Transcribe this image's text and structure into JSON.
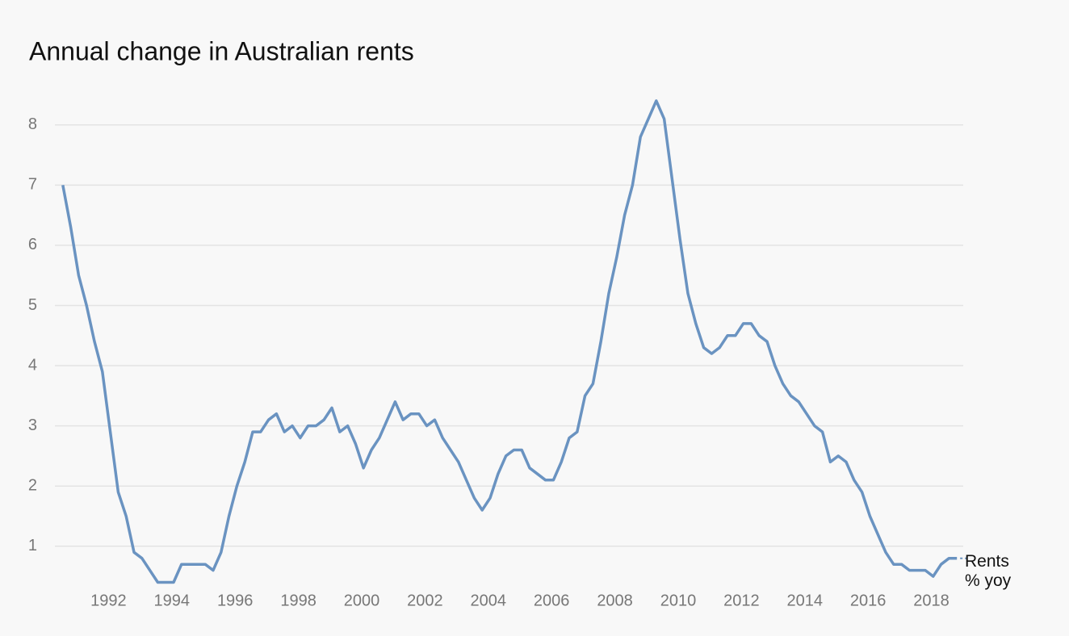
{
  "chart_data": {
    "type": "line",
    "title": "Annual change in Australian rents",
    "x": [
      1990.25,
      1990.5,
      1990.75,
      1991,
      1991.25,
      1991.5,
      1991.75,
      1992,
      1992.25,
      1992.5,
      1992.75,
      1993,
      1993.25,
      1993.5,
      1993.75,
      1994,
      1994.25,
      1994.5,
      1994.75,
      1995,
      1995.25,
      1995.5,
      1995.75,
      1996,
      1996.25,
      1996.5,
      1996.75,
      1997,
      1997.25,
      1997.5,
      1997.75,
      1998,
      1998.25,
      1998.5,
      1998.75,
      1999,
      1999.25,
      1999.5,
      1999.75,
      2000,
      2000.25,
      2000.5,
      2000.75,
      2001,
      2001.25,
      2001.5,
      2001.75,
      2002,
      2002.25,
      2002.5,
      2002.75,
      2003,
      2003.25,
      2003.5,
      2003.75,
      2004,
      2004.25,
      2004.5,
      2004.75,
      2005,
      2005.25,
      2005.5,
      2005.75,
      2006,
      2006.25,
      2006.5,
      2006.75,
      2007,
      2007.25,
      2007.5,
      2007.75,
      2008,
      2008.25,
      2008.5,
      2008.75,
      2009,
      2009.25,
      2009.5,
      2009.75,
      2010,
      2010.25,
      2010.5,
      2010.75,
      2011,
      2011.25,
      2011.5,
      2011.75,
      2012,
      2012.25,
      2012.5,
      2012.75,
      2013,
      2013.25,
      2013.5,
      2013.75,
      2014,
      2014.25,
      2014.5,
      2014.75,
      2015,
      2015.25,
      2015.5,
      2015.75,
      2016,
      2016.25,
      2016.5,
      2016.75,
      2017,
      2017.25,
      2017.5,
      2017.75,
      2018,
      2018.25,
      2018.5
    ],
    "series": [
      {
        "name": "Rents % yoy",
        "color": "#6a93c1",
        "values": [
          7.0,
          6.3,
          5.5,
          5.0,
          4.4,
          3.9,
          2.9,
          1.9,
          1.5,
          0.9,
          0.8,
          0.6,
          0.4,
          0.4,
          0.4,
          0.7,
          0.7,
          0.7,
          0.7,
          0.6,
          0.9,
          1.5,
          2.0,
          2.4,
          2.9,
          2.9,
          3.1,
          3.2,
          2.9,
          3.0,
          2.8,
          3.0,
          3.0,
          3.1,
          3.3,
          2.9,
          3.0,
          2.7,
          2.3,
          2.6,
          2.8,
          3.1,
          3.4,
          3.1,
          3.2,
          3.2,
          3.0,
          3.1,
          2.8,
          2.6,
          2.4,
          2.1,
          1.8,
          1.6,
          1.8,
          2.2,
          2.5,
          2.6,
          2.6,
          2.3,
          2.2,
          2.1,
          2.1,
          2.4,
          2.8,
          2.9,
          3.5,
          3.7,
          4.4,
          5.2,
          5.8,
          6.5,
          7.0,
          7.8,
          8.1,
          8.4,
          8.1,
          7.1,
          6.1,
          5.2,
          4.7,
          4.3,
          4.2,
          4.3,
          4.5,
          4.5,
          4.7,
          4.7,
          4.5,
          4.4,
          4.0,
          3.7,
          3.5,
          3.4,
          3.2,
          3.0,
          2.9,
          2.4,
          2.5,
          2.4,
          2.1,
          1.9,
          1.5,
          1.2,
          0.9,
          0.7,
          0.7,
          0.6,
          0.6,
          0.6,
          0.5,
          0.7,
          0.8,
          0.8
        ]
      }
    ],
    "xlim": [
      1990,
      2018.7
    ],
    "xticks": [
      1992,
      1994,
      1996,
      1998,
      2000,
      2002,
      2004,
      2006,
      2008,
      2010,
      2012,
      2014,
      2016,
      2018
    ],
    "ylim": [
      0.3,
      8.6
    ],
    "yticks": [
      1,
      2,
      3,
      4,
      5,
      6,
      7,
      8
    ],
    "grid": true
  }
}
